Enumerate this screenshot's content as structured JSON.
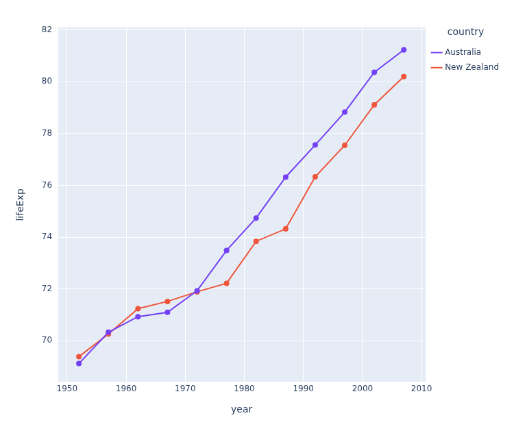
{
  "chart_data": {
    "type": "line",
    "x_label": "year",
    "y_label": "lifeExp",
    "legend_title": "country",
    "x": [
      1952,
      1957,
      1962,
      1967,
      1972,
      1977,
      1982,
      1987,
      1992,
      1997,
      2002,
      2007
    ],
    "series": [
      {
        "name": "Australia",
        "color": "#7340f5",
        "marker": "circle",
        "line_style": "solid",
        "values": [
          69.12,
          70.33,
          70.93,
          71.1,
          71.93,
          73.49,
          74.74,
          76.32,
          77.56,
          78.83,
          80.37,
          81.235
        ]
      },
      {
        "name": "New Zealand",
        "color": "#ef553b",
        "marker": "circle",
        "line_style": "solid",
        "values": [
          69.39,
          70.26,
          71.24,
          71.52,
          71.89,
          72.22,
          73.84,
          74.32,
          76.33,
          77.55,
          79.11,
          80.204
        ]
      }
    ],
    "xlim": [
      1948.4,
      2010.7
    ],
    "xticks": [
      1950,
      1960,
      1970,
      1980,
      1990,
      2000,
      2010
    ],
    "ylim": [
      68.4,
      82.1
    ],
    "yticks": [
      70,
      72,
      74,
      76,
      78,
      80,
      82
    ],
    "grid": true,
    "legend": "right"
  }
}
